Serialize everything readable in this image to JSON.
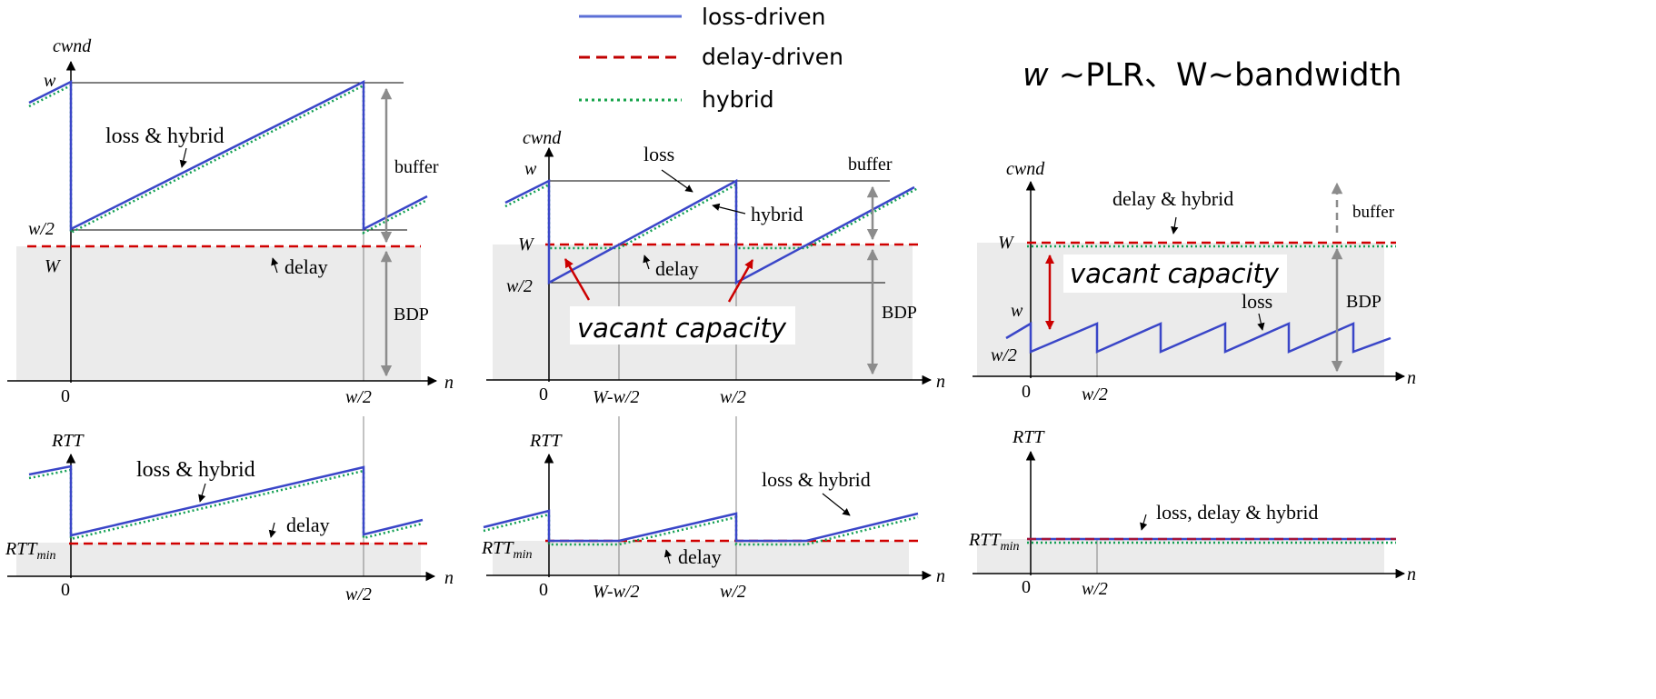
{
  "legend": {
    "items": [
      {
        "label": "loss-driven",
        "color": "#5b6fd6",
        "style": "solid"
      },
      {
        "label": "delay-driven",
        "color": "#c00000",
        "style": "dashed"
      },
      {
        "label": "hybrid",
        "color": "#16a34a",
        "style": "dotted"
      }
    ]
  },
  "relation_note": {
    "w_part": "w",
    "text": " ~PLR、W~bandwidth"
  },
  "axes": {
    "cwnd": "cwnd",
    "rtt": "RTT",
    "n": "n",
    "zero": "0",
    "w": "w",
    "w_half": "w/2",
    "big_w": "W",
    "w_minus": "W-w/2",
    "rtt_min_main": "RTT",
    "rtt_min_sub": "min"
  },
  "panel1": {
    "loss_hybrid": "loss & hybrid",
    "buffer": "buffer",
    "delay": "delay",
    "bdp": "BDP"
  },
  "panel2": {
    "loss": "loss",
    "hybrid": "hybrid",
    "buffer": "buffer",
    "delay": "delay",
    "bdp": "BDP",
    "vacant": "vacant capacity"
  },
  "panel3": {
    "delay_hybrid": "delay & hybrid",
    "buffer": "buffer",
    "vacant": "vacant capacity",
    "loss": "loss",
    "bdp": "BDP"
  },
  "rtt1": {
    "loss_hybrid": "loss & hybrid",
    "delay": "delay"
  },
  "rtt2": {
    "loss_hybrid": "loss & hybrid",
    "delay": "delay"
  },
  "rtt3": {
    "all": "loss, delay & hybrid"
  },
  "colors": {
    "loss": "#3a46c8",
    "delay": "#d00000",
    "hybrid": "#13a054",
    "shade": "#ebebeb",
    "arrow_gray": "#8c8c8c",
    "arrow_red": "#cc0000"
  }
}
